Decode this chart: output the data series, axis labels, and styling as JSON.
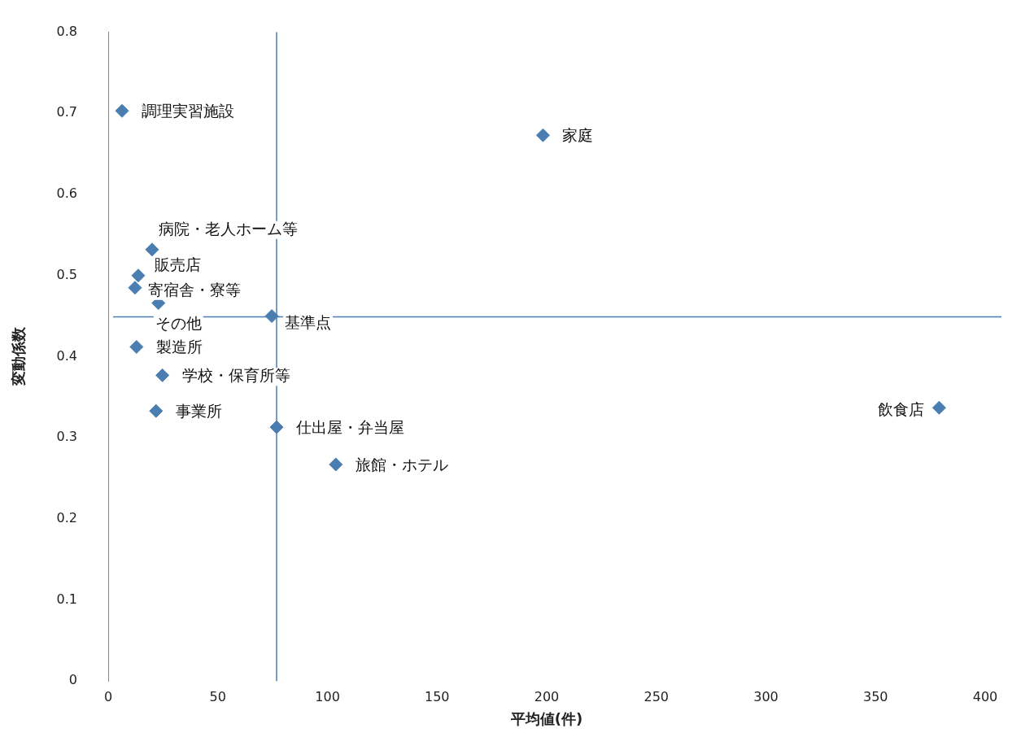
{
  "chart_data": {
    "type": "scatter",
    "xlabel": "平均値(件)",
    "ylabel": "変動係数",
    "x": [
      6.3,
      198.3,
      20,
      13.7,
      12.2,
      22.9,
      74.6,
      12.9,
      24.7,
      21.8,
      76.8,
      103.8,
      379
    ],
    "series": [
      {
        "color": "#4a7eb0",
        "values": [
          0.703,
          0.673,
          0.532,
          0.5,
          0.485,
          0.466,
          0.45,
          0.412,
          0.377,
          0.333,
          0.313,
          0.267,
          0.337
        ]
      }
    ],
    "annotations": [
      {
        "text": "調理実習施設",
        "x": 6.3,
        "y": 0.703
      },
      {
        "text": "家庭",
        "x": 198.3,
        "y": 0.673
      },
      {
        "text": "病院・老人ホーム等",
        "x": 20,
        "y": 0.532
      },
      {
        "text": "販売店",
        "x": 13.7,
        "y": 0.5
      },
      {
        "text": "寄宿舎・寮等",
        "x": 12.2,
        "y": 0.485
      },
      {
        "text": "その他",
        "x": 22.9,
        "y": 0.466
      },
      {
        "text": "基準点",
        "x": 74.6,
        "y": 0.45
      },
      {
        "text": "製造所",
        "x": 12.9,
        "y": 0.412
      },
      {
        "text": "学校・保育所等",
        "x": 24.7,
        "y": 0.377
      },
      {
        "text": "事業所",
        "x": 21.8,
        "y": 0.333
      },
      {
        "text": "仕出屋・弁当屋",
        "x": 76.8,
        "y": 0.313
      },
      {
        "text": "旅館・ホテル",
        "x": 103.8,
        "y": 0.267
      },
      {
        "text": "飲食店",
        "x": 379,
        "y": 0.337
      }
    ],
    "ref_lines": [
      {
        "axis": "x",
        "value": 76.8,
        "color": "#4a7eb0"
      },
      {
        "axis": "y",
        "value": 0.449,
        "color": "#4a7eb0"
      }
    ],
    "xlim": [
      0,
      400
    ],
    "xticks": [
      0,
      50,
      100,
      150,
      200,
      250,
      300,
      350,
      400
    ],
    "ylim": [
      0,
      0.8
    ],
    "yticks": [
      0,
      0.1,
      0.2,
      0.3,
      0.4,
      0.5,
      0.6,
      0.7,
      0.8
    ],
    "grid": false,
    "legend": false,
    "marker": "diamond"
  }
}
